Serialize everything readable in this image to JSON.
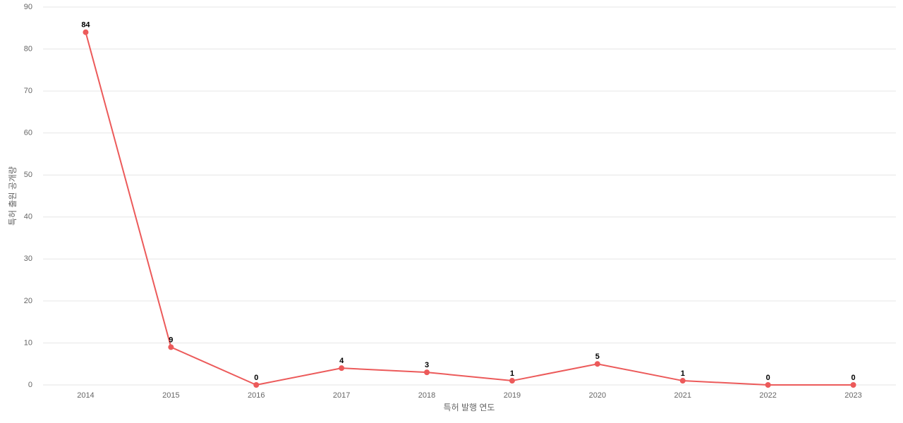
{
  "chart_data": {
    "type": "line",
    "x_label": "특허 발행 연도",
    "y_label": "특허 출원 공개량",
    "categories": [
      "2014",
      "2015",
      "2016",
      "2017",
      "2018",
      "2019",
      "2020",
      "2021",
      "2022",
      "2023"
    ],
    "series": [
      {
        "name": "특허 출원 공개량",
        "color": "#ec5a5a",
        "values": [
          84,
          9,
          0,
          4,
          3,
          1,
          5,
          1,
          0,
          0
        ]
      }
    ],
    "ylim": [
      0,
      90
    ],
    "yticks": [
      0,
      10,
      20,
      30,
      40,
      50,
      60,
      70,
      80,
      90
    ],
    "grid": true
  }
}
